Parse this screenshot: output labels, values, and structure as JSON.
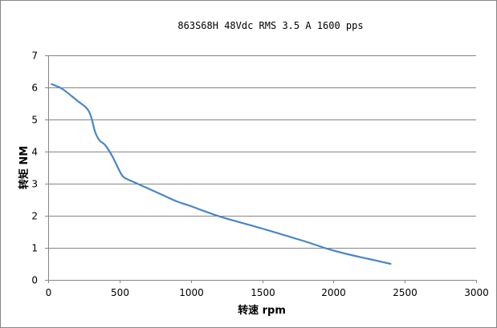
{
  "chart_data": {
    "type": "line",
    "title": "863S68H  48Vdc   RMS 3.5 A   1600 pps",
    "xlabel": "转速 rpm",
    "ylabel": "转矩 NM",
    "xlim": [
      0,
      3000
    ],
    "ylim": [
      0,
      7
    ],
    "xticks": [
      0,
      500,
      1000,
      1500,
      2000,
      2500,
      3000
    ],
    "yticks": [
      0,
      1,
      2,
      3,
      4,
      5,
      6,
      7
    ],
    "grid": "horizontal",
    "legend": "none",
    "series": [
      {
        "name": "torque",
        "color": "#4A86C5",
        "x": [
          25,
          100,
          200,
          270,
          300,
          330,
          360,
          400,
          450,
          500,
          530,
          600,
          700,
          800,
          900,
          1000,
          1200,
          1500,
          1800,
          1950,
          2100,
          2250,
          2400
        ],
        "y": [
          6.1,
          5.95,
          5.6,
          5.35,
          5.1,
          4.6,
          4.35,
          4.2,
          3.85,
          3.4,
          3.2,
          3.05,
          2.85,
          2.65,
          2.45,
          2.3,
          1.98,
          1.6,
          1.2,
          0.98,
          0.8,
          0.65,
          0.5
        ]
      }
    ]
  }
}
